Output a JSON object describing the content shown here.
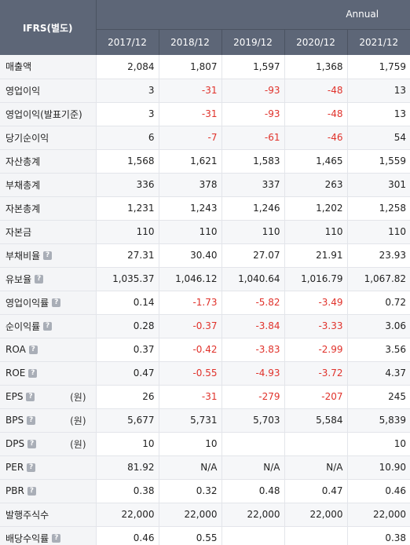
{
  "header": {
    "corner_label": "IFRS(별도)",
    "period_label": "Annual",
    "years": [
      "2017/12",
      "2018/12",
      "2019/12",
      "2020/12",
      "2021/12"
    ]
  },
  "colors": {
    "header_bg": "#5d6677",
    "negative": "#e0322b",
    "label_bg": "#f4f5f7"
  },
  "rows": [
    {
      "label": "매출액",
      "help": false,
      "unit": "",
      "values": [
        "2,084",
        "1,807",
        "1,597",
        "1,368",
        "1,759"
      ]
    },
    {
      "label": "영업이익",
      "help": false,
      "unit": "",
      "values": [
        "3",
        "-31",
        "-93",
        "-48",
        "13"
      ]
    },
    {
      "label": "영업이익(발표기준)",
      "help": false,
      "unit": "",
      "values": [
        "3",
        "-31",
        "-93",
        "-48",
        "13"
      ]
    },
    {
      "label": "당기순이익",
      "help": false,
      "unit": "",
      "values": [
        "6",
        "-7",
        "-61",
        "-46",
        "54"
      ]
    },
    {
      "label": "자산총계",
      "help": false,
      "unit": "",
      "values": [
        "1,568",
        "1,621",
        "1,583",
        "1,465",
        "1,559"
      ]
    },
    {
      "label": "부채총계",
      "help": false,
      "unit": "",
      "values": [
        "336",
        "378",
        "337",
        "263",
        "301"
      ]
    },
    {
      "label": "자본총계",
      "help": false,
      "unit": "",
      "values": [
        "1,231",
        "1,243",
        "1,246",
        "1,202",
        "1,258"
      ]
    },
    {
      "label": "자본금",
      "help": false,
      "unit": "",
      "values": [
        "110",
        "110",
        "110",
        "110",
        "110"
      ]
    },
    {
      "label": "부채비율",
      "help": true,
      "unit": "",
      "values": [
        "27.31",
        "30.40",
        "27.07",
        "21.91",
        "23.93"
      ]
    },
    {
      "label": "유보율",
      "help": true,
      "unit": "",
      "values": [
        "1,035.37",
        "1,046.12",
        "1,040.64",
        "1,016.79",
        "1,067.82"
      ]
    },
    {
      "label": "영업이익률",
      "help": true,
      "unit": "",
      "values": [
        "0.14",
        "-1.73",
        "-5.82",
        "-3.49",
        "0.72"
      ]
    },
    {
      "label": "순이익률",
      "help": true,
      "unit": "",
      "values": [
        "0.28",
        "-0.37",
        "-3.84",
        "-3.33",
        "3.06"
      ]
    },
    {
      "label": "ROA",
      "help": true,
      "unit": "",
      "values": [
        "0.37",
        "-0.42",
        "-3.83",
        "-2.99",
        "3.56"
      ]
    },
    {
      "label": "ROE",
      "help": true,
      "unit": "",
      "values": [
        "0.47",
        "-0.55",
        "-4.93",
        "-3.72",
        "4.37"
      ]
    },
    {
      "label": "EPS",
      "help": true,
      "unit": "(원)",
      "values": [
        "26",
        "-31",
        "-279",
        "-207",
        "245"
      ]
    },
    {
      "label": "BPS",
      "help": true,
      "unit": "(원)",
      "values": [
        "5,677",
        "5,731",
        "5,703",
        "5,584",
        "5,839"
      ]
    },
    {
      "label": "DPS",
      "help": true,
      "unit": "(원)",
      "values": [
        "10",
        "10",
        "",
        "",
        "10"
      ]
    },
    {
      "label": "PER",
      "help": true,
      "unit": "",
      "values": [
        "81.92",
        "N/A",
        "N/A",
        "N/A",
        "10.90"
      ]
    },
    {
      "label": "PBR",
      "help": true,
      "unit": "",
      "values": [
        "0.38",
        "0.32",
        "0.48",
        "0.47",
        "0.46"
      ]
    },
    {
      "label": "발행주식수",
      "help": false,
      "unit": "",
      "values": [
        "22,000",
        "22,000",
        "22,000",
        "22,000",
        "22,000"
      ]
    },
    {
      "label": "배당수익률",
      "help": true,
      "unit": "",
      "values": [
        "0.46",
        "0.55",
        "",
        "",
        "0.38"
      ]
    }
  ]
}
